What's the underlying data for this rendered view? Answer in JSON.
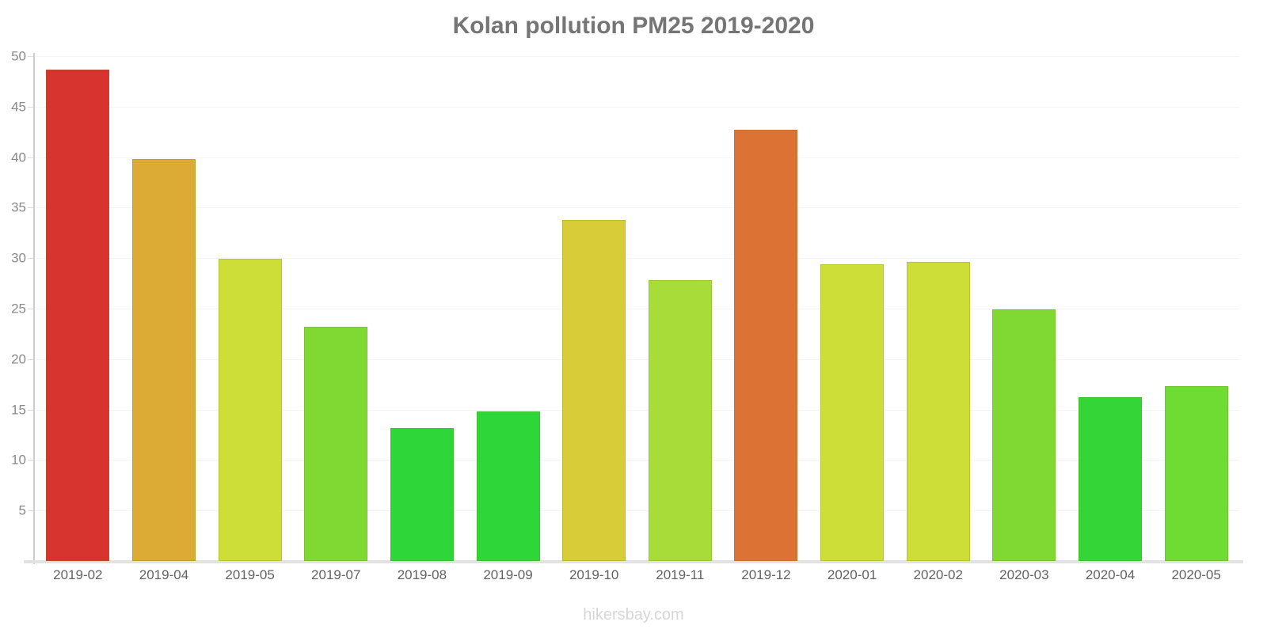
{
  "title": "Kolan pollution PM25 2019-2020",
  "watermark": "hikersbay.com",
  "chart_data": {
    "type": "bar",
    "title": "Kolan pollution PM25 2019-2020",
    "categories": [
      "2019-02",
      "2019-04",
      "2019-05",
      "2019-07",
      "2019-08",
      "2019-09",
      "2019-10",
      "2019-11",
      "2019-12",
      "2020-01",
      "2020-02",
      "2020-03",
      "2020-04",
      "2020-05"
    ],
    "values": [
      48.7,
      39.8,
      29.9,
      23.2,
      13.2,
      14.8,
      33.8,
      27.8,
      42.7,
      29.4,
      29.6,
      24.9,
      16.2,
      17.3
    ],
    "bar_colors": [
      "#d7342f",
      "#dcab36",
      "#cdde38",
      "#80d933",
      "#2fd639",
      "#2fd639",
      "#d8cc38",
      "#a8dc38",
      "#dc7233",
      "#cdde38",
      "#cdde38",
      "#80d933",
      "#33d636",
      "#6edc33"
    ],
    "xlabel": "",
    "ylabel": "",
    "ylim": [
      0,
      50
    ],
    "yticks": [
      0,
      5,
      10,
      15,
      20,
      25,
      30,
      35,
      40,
      45,
      50
    ],
    "grid": true,
    "legend": false,
    "footer": "hikersbay.com"
  },
  "colors": {
    "title_text": "#757575",
    "axis_line": "#cccccc",
    "baseline": "#e2e2e2",
    "gridline": "#f5f5f5",
    "y_tick_label": "#8a8a8a",
    "x_tick_label": "#626262",
    "watermark": "#d6d6d6"
  }
}
